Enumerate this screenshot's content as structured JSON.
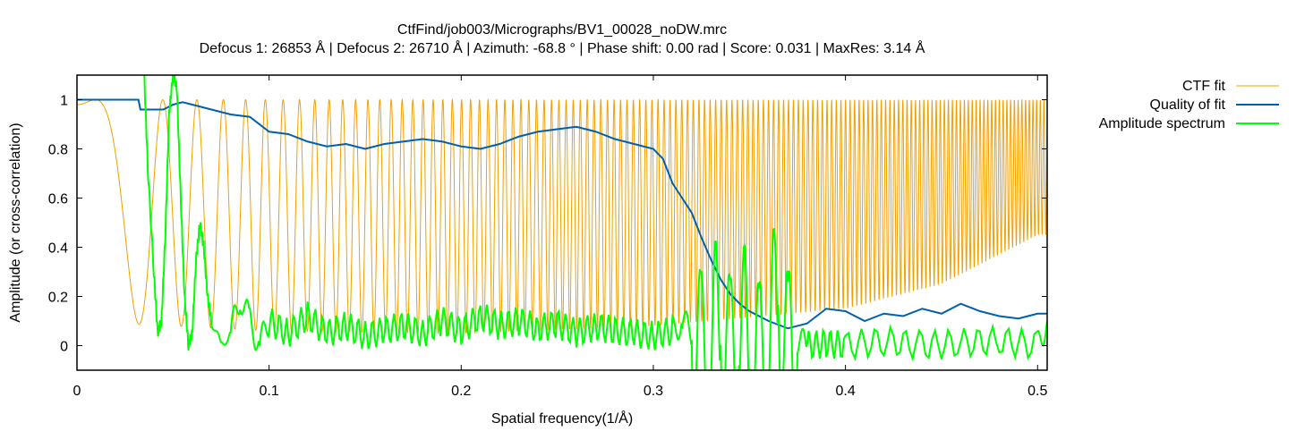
{
  "chart_data": {
    "type": "line",
    "title": "CtfFind/job003/Micrographs/BV1_00028_noDW.mrc",
    "subtitle": "Defocus 1: 26853 Å | Defocus 2: 26710 Å | Azimuth: -68.8 ° | Phase shift: 0.00 rad | Score: 0.031 | MaxRes: 3.14 Å",
    "xlabel": "Spatial frequency(1/Å)",
    "ylabel": "Amplitude (or cross-correlation)",
    "xlim": [
      0,
      0.505
    ],
    "ylim": [
      -0.1,
      1.1
    ],
    "xticks": [
      0,
      0.1,
      0.2,
      0.3,
      0.4,
      0.5
    ],
    "xtick_labels": [
      "0",
      "0.1",
      "0.2",
      "0.3",
      "0.4",
      "0.5"
    ],
    "yticks": [
      0,
      0.2,
      0.4,
      0.6,
      0.8,
      1
    ],
    "ytick_labels": [
      "0",
      "0.2",
      "0.4",
      "0.6",
      "0.8",
      "1"
    ],
    "grid": false,
    "legend_position": "top-right-outside",
    "series": [
      {
        "name": "CTF fit",
        "color": "#f0a000",
        "ctf_envelope": [
          [
            0.0,
            0.1
          ],
          [
            0.1,
            0.06
          ],
          [
            0.2,
            0.05
          ],
          [
            0.3,
            0.08
          ],
          [
            0.4,
            0.15
          ],
          [
            0.45,
            0.25
          ],
          [
            0.5,
            0.45
          ]
        ],
        "x": [],
        "y": []
      },
      {
        "name": "Quality of fit",
        "color": "#0060ad",
        "x": [
          0.0,
          0.032,
          0.033,
          0.045,
          0.05,
          0.055,
          0.06,
          0.065,
          0.07,
          0.08,
          0.09,
          0.1,
          0.11,
          0.12,
          0.13,
          0.14,
          0.15,
          0.16,
          0.17,
          0.18,
          0.19,
          0.2,
          0.21,
          0.22,
          0.23,
          0.24,
          0.25,
          0.26,
          0.27,
          0.28,
          0.29,
          0.3,
          0.305,
          0.31,
          0.315,
          0.32,
          0.325,
          0.33,
          0.335,
          0.34,
          0.345,
          0.35,
          0.36,
          0.37,
          0.38,
          0.39,
          0.4,
          0.41,
          0.42,
          0.43,
          0.44,
          0.45,
          0.46,
          0.47,
          0.48,
          0.49,
          0.5,
          0.505
        ],
        "y": [
          1.0,
          1.0,
          0.96,
          0.96,
          0.98,
          0.99,
          0.98,
          0.97,
          0.96,
          0.94,
          0.93,
          0.87,
          0.86,
          0.83,
          0.81,
          0.82,
          0.8,
          0.82,
          0.83,
          0.84,
          0.83,
          0.81,
          0.8,
          0.82,
          0.85,
          0.87,
          0.88,
          0.89,
          0.87,
          0.84,
          0.82,
          0.8,
          0.76,
          0.66,
          0.6,
          0.54,
          0.44,
          0.35,
          0.27,
          0.21,
          0.17,
          0.14,
          0.1,
          0.07,
          0.09,
          0.15,
          0.14,
          0.1,
          0.13,
          0.12,
          0.15,
          0.13,
          0.17,
          0.14,
          0.12,
          0.11,
          0.13,
          0.13
        ]
      },
      {
        "name": "Amplitude spectrum",
        "color": "#00ff00",
        "x": [
          0.035,
          0.037,
          0.04,
          0.042,
          0.044,
          0.046,
          0.048,
          0.05,
          0.052,
          0.054,
          0.056,
          0.058,
          0.06,
          0.062,
          0.064,
          0.066,
          0.068,
          0.07,
          0.075,
          0.08,
          0.085,
          0.09,
          0.095,
          0.1,
          0.11,
          0.12,
          0.13,
          0.14,
          0.15,
          0.16,
          0.17,
          0.18,
          0.19,
          0.2,
          0.21,
          0.22,
          0.23,
          0.24,
          0.25,
          0.26,
          0.27,
          0.28,
          0.29,
          0.3,
          0.31,
          0.315,
          0.32,
          0.325,
          0.33,
          0.335,
          0.34,
          0.345,
          0.35,
          0.355,
          0.36,
          0.365,
          0.37,
          0.375,
          0.38,
          0.39,
          0.4,
          0.42,
          0.44,
          0.46,
          0.48,
          0.5,
          0.505
        ],
        "y": [
          1.1,
          0.7,
          0.3,
          0.05,
          0.1,
          0.45,
          0.95,
          1.1,
          1.05,
          0.6,
          0.2,
          0.0,
          0.05,
          0.35,
          0.5,
          0.4,
          0.2,
          0.1,
          0.0,
          0.05,
          0.2,
          0.1,
          0.0,
          0.1,
          0.05,
          0.12,
          0.05,
          0.08,
          0.04,
          0.06,
          0.08,
          0.05,
          0.1,
          0.06,
          0.12,
          0.08,
          0.1,
          0.07,
          0.09,
          0.05,
          0.08,
          0.06,
          0.05,
          0.04,
          0.06,
          0.1,
          0.05,
          -0.05,
          0.02,
          0.15,
          -0.08,
          0.12,
          0.0,
          -0.1,
          0.05,
          0.2,
          -0.05,
          0.02,
          0.0,
          0.01,
          0.0,
          0.02,
          0.0,
          0.01,
          0.02,
          0.0,
          0.1
        ]
      }
    ]
  }
}
